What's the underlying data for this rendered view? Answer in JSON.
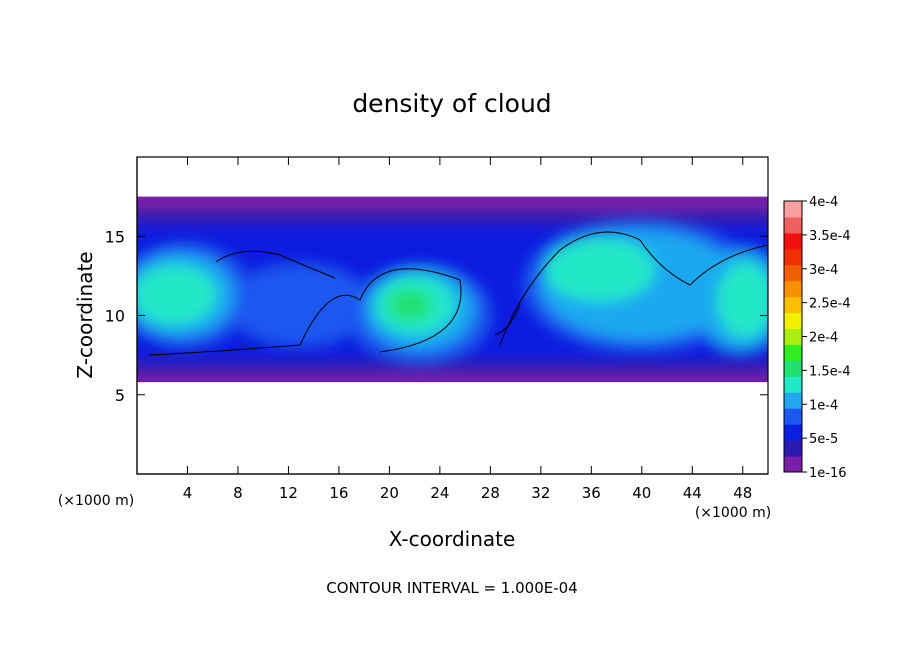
{
  "chart_data": {
    "type": "heatmap",
    "title": "density of cloud",
    "xlabel": "X-coordinate",
    "ylabel": "Z-coordinate",
    "x_unit_left": "(×1000 m)",
    "x_unit_right": "(×1000 m)",
    "xlim": [
      0,
      50
    ],
    "ylim": [
      0,
      20
    ],
    "x_ticks": [
      4,
      8,
      12,
      16,
      20,
      24,
      28,
      32,
      36,
      40,
      44,
      48
    ],
    "x_tick_labels": [
      "4",
      "8",
      "12",
      "16",
      "20",
      "24",
      "28",
      "32",
      "36",
      "40",
      "44",
      "48"
    ],
    "y_ticks": [
      5,
      10,
      15
    ],
    "y_tick_labels": [
      "5",
      "10",
      "15"
    ],
    "footer": "CONTOUR INTERVAL = 1.000E-04",
    "contour_interval": 0.0001,
    "cloud_layer_z_range": [
      5.8,
      17.5
    ],
    "colorbar": {
      "colors": [
        "#7a1fa8",
        "#2a1ab0",
        "#0b1fe0",
        "#1a58f0",
        "#1fa8f0",
        "#20e8c8",
        "#20e070",
        "#30ee20",
        "#a8ee10",
        "#f0f000",
        "#f8c000",
        "#f89000",
        "#f06000",
        "#f03000",
        "#f01010",
        "#f06060",
        "#f8a0a0"
      ],
      "tick_values": [
        1e-16,
        5e-05,
        0.0001,
        0.00015,
        0.0002,
        0.00025,
        0.0003,
        0.00035,
        0.0004
      ],
      "tick_labels": [
        "1e-16",
        "5e-5",
        "1e-4",
        "1.5e-4",
        "2e-4",
        "2.5e-4",
        "3e-4",
        "3.5e-4",
        "4e-4"
      ]
    },
    "background_color": "#7a1fa8",
    "contour_color": "#000000",
    "grid": false
  }
}
